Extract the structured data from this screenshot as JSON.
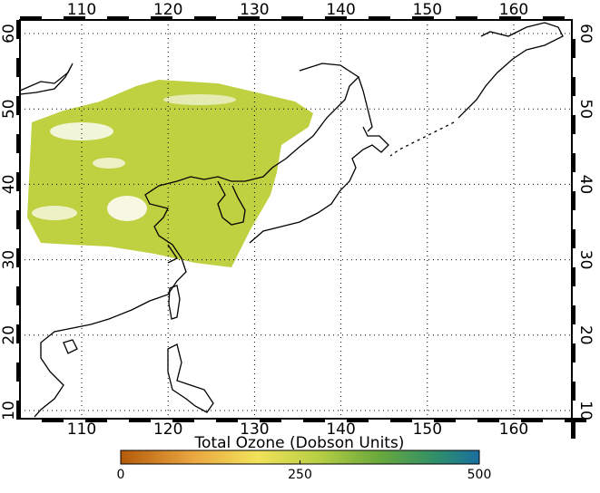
{
  "map": {
    "lon_ticks": [
      110,
      120,
      130,
      140,
      150,
      160
    ],
    "lat_ticks": [
      10,
      20,
      30,
      40,
      50,
      60
    ],
    "colorbar": {
      "title": "Total Ozone (Dobson Units)",
      "ticks": [
        0,
        250,
        500
      ]
    }
  }
}
